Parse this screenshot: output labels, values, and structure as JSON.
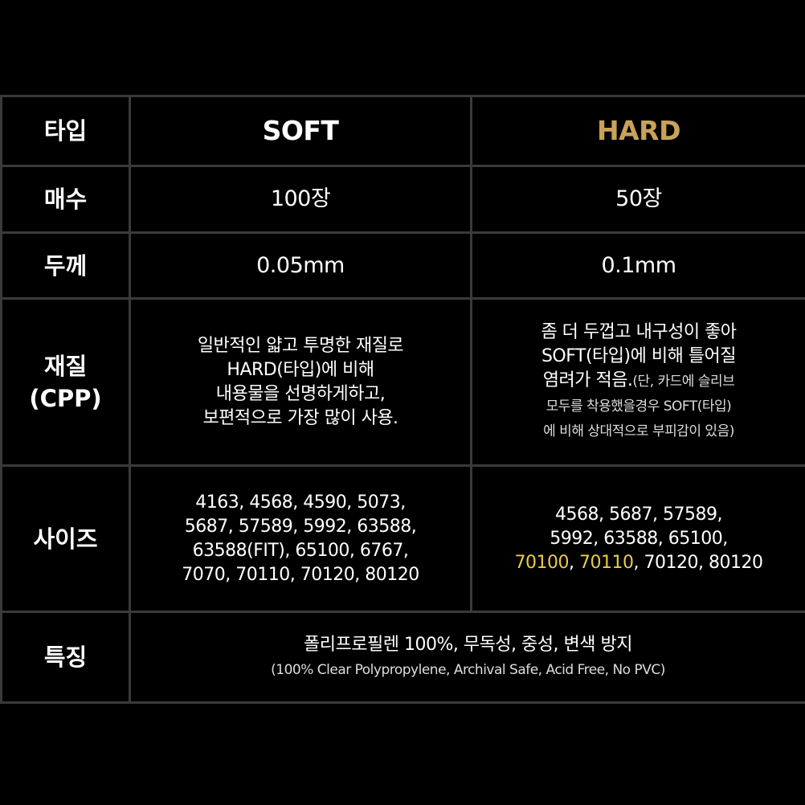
{
  "table": {
    "rows": [
      [
        [
          "타입"
        ],
        [
          [
            {
              "text": "SOFT"
            }
          ]
        ],
        [
          [
            {
              "text": "HARD",
              "color": "#c9a25a"
            }
          ]
        ]
      ],
      [
        [
          "매수"
        ],
        [
          "100장"
        ],
        [
          "50장"
        ]
      ],
      [
        [
          "두께"
        ],
        [
          "0.05mm"
        ],
        [
          "0.1mm"
        ]
      ],
      [
        [
          "재질",
          "(CPP)"
        ],
        [
          "일반적인 얇고 투명한 재질로",
          "HARD(타입)에 비해",
          "내용물을 선명하게하고,",
          "보편적으로 가장 많이 사용."
        ],
        [
          "좀 더 두껍고 내구성이 좋아",
          "SOFT(타입)에 비해 틀어질",
          [
            {
              "text": "염려가 적음."
            },
            {
              "text": "(단, 카드에 슬리브",
              "small": true
            }
          ],
          [
            {
              "text": "모두를 착용했을경우 SOFT(타입)",
              "small": true
            }
          ],
          [
            {
              "text": "에 비해 상대적으로 부피감이 있음)",
              "small": true
            }
          ]
        ]
      ],
      [
        [
          "사이즈"
        ],
        [
          "4163, 4568, 4590, 5073,",
          "5687, 57589, 5992, 63588,",
          "63588(FIT), 65100, 6767,",
          "7070, 70110, 70120, 80120"
        ],
        [
          "4568, 5687, 57589,",
          "5992, 63588, 65100,",
          [
            {
              "text": "70100",
              "color": "#e8cc4a"
            },
            {
              "text": ", "
            },
            {
              "text": "70110",
              "color": "#e8cc4a"
            },
            {
              "text": ", 70120, 80120"
            }
          ]
        ]
      ],
      [
        [
          "특징"
        ],
        [
          "폴리프로필렌 100%, 무독성, 중성, 변색 방지",
          [
            {
              "text": "(100% Clear Polypropylene, Archival Safe, Acid Free, No PVC)",
              "small": true
            }
          ]
        ]
      ]
    ]
  }
}
